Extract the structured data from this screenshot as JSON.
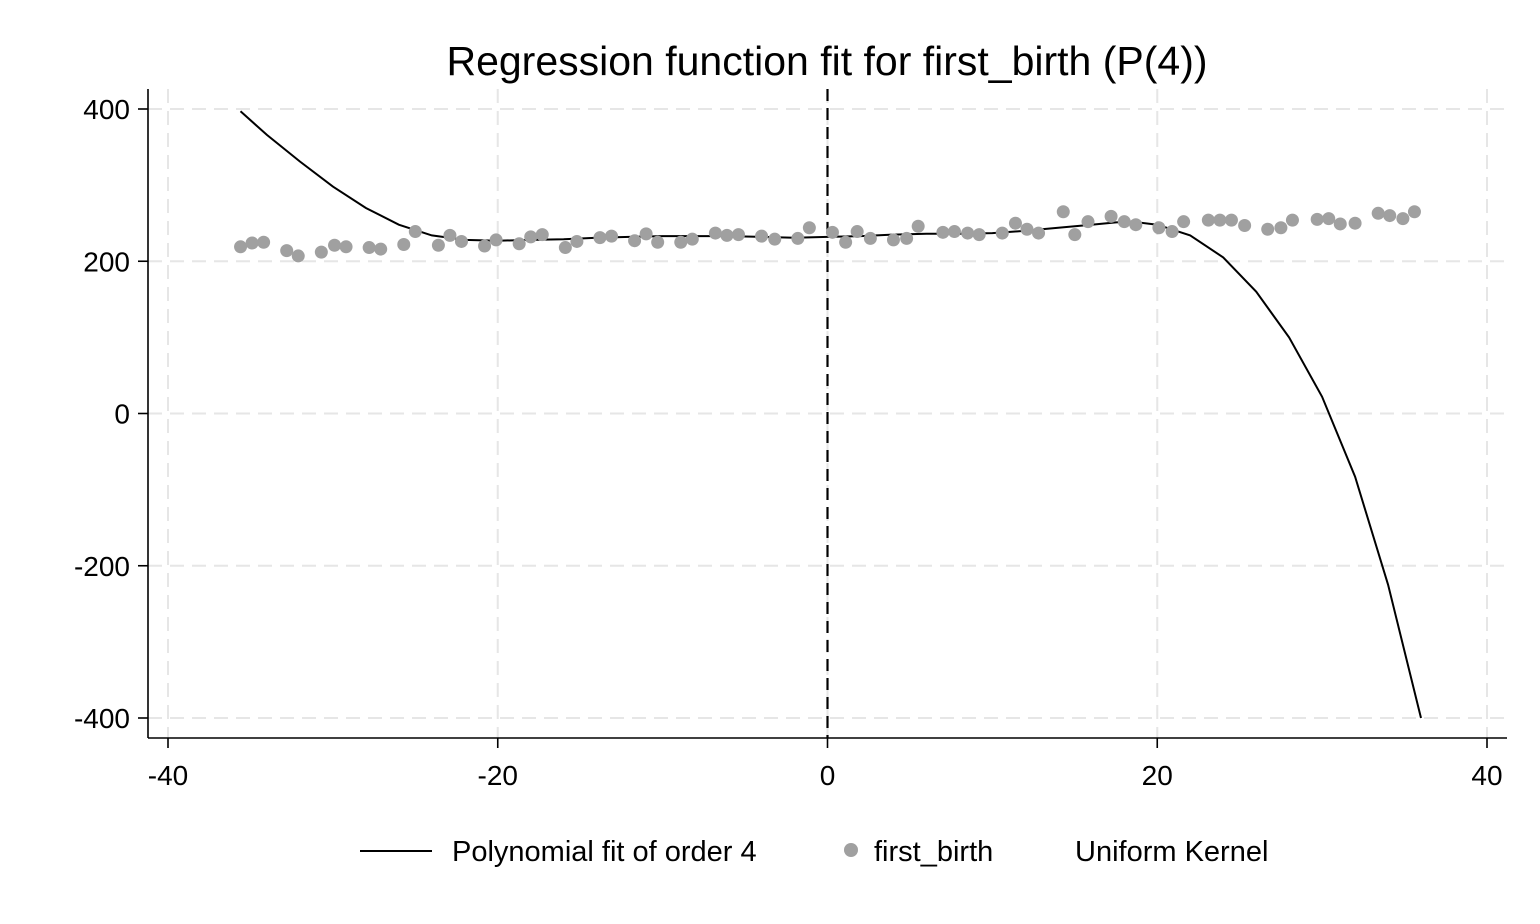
{
  "chart_data": {
    "type": "scatter",
    "title": "Regression function fit for first_birth (P(4))",
    "xlabel": "",
    "ylabel": "",
    "xlim": [
      -40,
      40
    ],
    "ylim": [
      -400,
      400
    ],
    "x_ticks": [
      -40,
      -20,
      0,
      20,
      40
    ],
    "y_ticks": [
      400,
      200,
      0,
      -200,
      -400
    ],
    "grid": true,
    "reference_line_x": 0,
    "legend_position": "bottom",
    "legend": [
      {
        "label": "Polynomial fit of order 4",
        "kind": "line"
      },
      {
        "label": "first_birth",
        "kind": "marker"
      },
      {
        "label": "Uniform Kernel",
        "kind": "none"
      }
    ],
    "series": [
      {
        "name": "first_birth",
        "kind": "scatter",
        "color": "#a0a0a0",
        "x": [
          -35.6,
          -34.9,
          -34.2,
          -32.8,
          -32.1,
          -30.7,
          -29.9,
          -29.2,
          -27.8,
          -27.1,
          -25.7,
          -25,
          -23.6,
          -22.9,
          -22.2,
          -20.8,
          -20.1,
          -18.7,
          -18,
          -17.3,
          -15.9,
          -15.2,
          -13.8,
          -13.1,
          -11.7,
          -11,
          -10.3,
          -8.9,
          -8.2,
          -6.8,
          -6.1,
          -5.4,
          -4,
          -3.2,
          -1.8,
          -1.1,
          0.3,
          1.1,
          1.8,
          2.6,
          4,
          4.8,
          5.5,
          7,
          7.7,
          8.5,
          9.2,
          10.6,
          11.4,
          12.1,
          12.8,
          14.3,
          15,
          15.8,
          17.2,
          18,
          18.7,
          20.1,
          20.9,
          21.6,
          23.1,
          23.8,
          24.5,
          25.3,
          26.7,
          27.5,
          28.2,
          29.7,
          30.4,
          31.1,
          32,
          33.4,
          34.1,
          34.9,
          35.6
        ],
        "y": [
          219,
          224,
          225,
          214,
          207,
          212,
          221,
          219,
          218,
          216,
          222,
          239,
          221,
          234,
          226,
          220,
          228,
          223,
          232,
          235,
          218,
          226,
          231,
          233,
          227,
          236,
          225,
          225,
          229,
          237,
          234,
          235,
          233,
          229,
          230,
          244,
          238,
          225,
          239,
          230,
          228,
          230,
          246,
          238,
          239,
          237,
          235,
          237,
          250,
          242,
          237,
          265,
          235,
          252,
          259,
          252,
          248,
          244,
          239,
          252,
          254,
          254,
          254,
          247,
          242,
          244,
          254,
          255,
          256,
          249,
          250,
          263,
          260,
          256,
          265
        ]
      },
      {
        "name": "Polynomial fit of order 4",
        "kind": "line",
        "color": "#000000",
        "x": [
          -35.6,
          -34,
          -32,
          -30,
          -28,
          -26,
          -24,
          -22,
          -20,
          -18,
          -16,
          -14,
          -12,
          -10,
          -8,
          -6,
          -4,
          -2,
          0,
          2,
          4,
          6,
          8,
          10,
          12,
          14,
          16,
          17.5,
          18.5,
          20,
          22,
          24,
          26,
          28,
          30,
          32,
          34,
          36
        ],
        "y": [
          397,
          366,
          331,
          298,
          270,
          248,
          234,
          228,
          227,
          228,
          229,
          231,
          232,
          233,
          233,
          233,
          232,
          231,
          232,
          233,
          235,
          236,
          236,
          237,
          240,
          244,
          248,
          251,
          252,
          248,
          234,
          205,
          160,
          100,
          22,
          -83,
          -225,
          -400
        ]
      }
    ]
  }
}
